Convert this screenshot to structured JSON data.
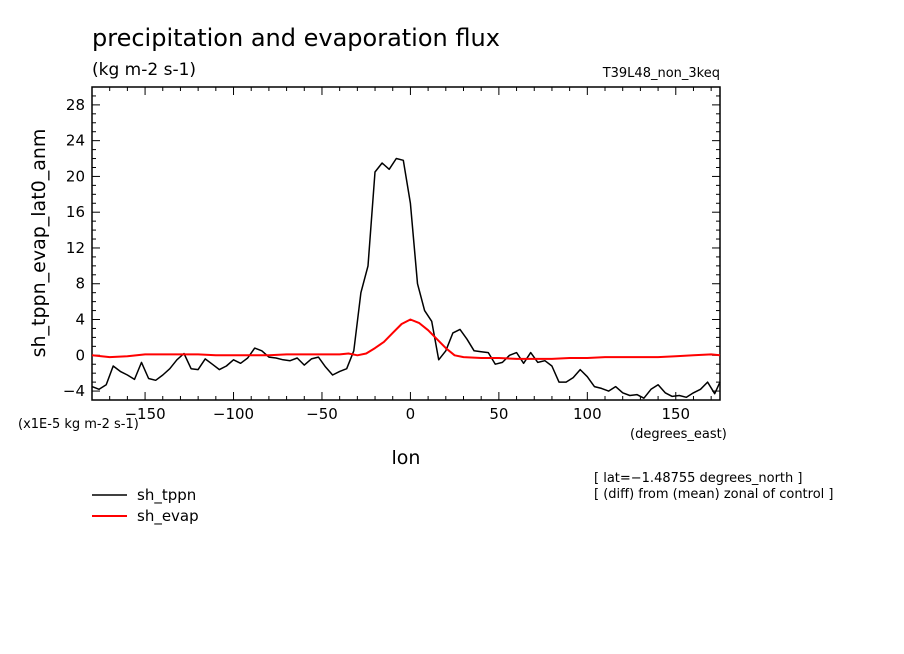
{
  "chart_data": {
    "type": "line",
    "title": "precipitation and evaporation flux",
    "units": "(kg m-2 s-1)",
    "run_label": "T39L48_non_3keq",
    "xlabel": "lon",
    "x_units": "(degrees_east)",
    "ylabel": "sh_tppn_evap_lat0_anm",
    "y_scale_note": "(x1E-5 kg m-2 s-1)",
    "xlim": [
      -180,
      175
    ],
    "ylim": [
      -5,
      30
    ],
    "x_ticks": [
      -150,
      -100,
      -50,
      0,
      50,
      100,
      150
    ],
    "x_tick_labels": [
      "−150",
      "−100",
      "−50",
      "0",
      "50",
      "100",
      "150"
    ],
    "y_ticks": [
      -4,
      0,
      4,
      8,
      12,
      16,
      20,
      24,
      28
    ],
    "y_tick_labels": [
      "−4",
      "0",
      "4",
      "8",
      "12",
      "16",
      "20",
      "24",
      "28"
    ],
    "annotations": [
      "[ lat=−1.48755 degrees_north ]",
      "[ (diff) from (mean) zonal of control ]"
    ],
    "legend_placement": "bottom-left",
    "grid": false,
    "series": [
      {
        "name": "sh_tppn",
        "color": "#000000",
        "x": [
          -180,
          -176,
          -172,
          -168,
          -164,
          -160,
          -156,
          -152,
          -148,
          -144,
          -140,
          -136,
          -132,
          -128,
          -124,
          -120,
          -116,
          -112,
          -108,
          -104,
          -100,
          -96,
          -92,
          -88,
          -84,
          -80,
          -76,
          -72,
          -68,
          -64,
          -60,
          -56,
          -52,
          -48,
          -44,
          -40,
          -36,
          -32,
          -28,
          -24,
          -20,
          -16,
          -12,
          -8,
          -4,
          0,
          4,
          8,
          12,
          16,
          20,
          24,
          28,
          32,
          36,
          40,
          44,
          48,
          52,
          56,
          60,
          64,
          68,
          72,
          76,
          80,
          84,
          88,
          92,
          96,
          100,
          104,
          108,
          112,
          116,
          120,
          124,
          128,
          132,
          136,
          140,
          144,
          148,
          152,
          156,
          160,
          164,
          168,
          172,
          175
        ],
        "values": [
          -3.5,
          -3.8,
          -3.3,
          -1.2,
          -1.8,
          -2.2,
          -2.7,
          -0.8,
          -2.6,
          -2.8,
          -2.2,
          -1.5,
          -0.5,
          0.2,
          -1.5,
          -1.6,
          -0.4,
          -1.0,
          -1.6,
          -1.2,
          -0.5,
          -0.9,
          -0.3,
          0.8,
          0.5,
          -0.2,
          -0.3,
          -0.5,
          -0.6,
          -0.3,
          -1.1,
          -0.4,
          -0.2,
          -1.3,
          -2.2,
          -1.8,
          -1.5,
          0.5,
          7.0,
          10.0,
          20.5,
          21.5,
          20.8,
          22.0,
          21.8,
          17.0,
          8.0,
          5.0,
          3.8,
          -0.5,
          0.5,
          2.5,
          2.9,
          1.8,
          0.5,
          0.4,
          0.3,
          -1.0,
          -0.8,
          0.0,
          0.3,
          -0.9,
          0.3,
          -0.8,
          -0.6,
          -1.2,
          -3.0,
          -3.0,
          -2.5,
          -1.6,
          -2.4,
          -3.5,
          -3.7,
          -4.0,
          -3.5,
          -4.2,
          -4.5,
          -4.4,
          -4.8,
          -3.8,
          -3.3,
          -4.2,
          -4.6,
          -4.5,
          -4.7,
          -4.2,
          -3.8,
          -3.0,
          -4.3,
          -3.0
        ],
        "_note": "values estimated from plot"
      },
      {
        "name": "sh_evap",
        "color": "#ff0000",
        "x": [
          -180,
          -170,
          -160,
          -150,
          -140,
          -130,
          -120,
          -110,
          -100,
          -90,
          -80,
          -70,
          -60,
          -50,
          -40,
          -35,
          -30,
          -25,
          -20,
          -15,
          -10,
          -5,
          0,
          5,
          10,
          15,
          20,
          25,
          30,
          40,
          50,
          60,
          70,
          80,
          90,
          100,
          110,
          120,
          130,
          140,
          150,
          160,
          170,
          175
        ],
        "values": [
          0.0,
          -0.2,
          -0.1,
          0.1,
          0.1,
          0.1,
          0.1,
          0.0,
          0.0,
          0.0,
          0.0,
          0.1,
          0.1,
          0.1,
          0.1,
          0.2,
          0.0,
          0.2,
          0.8,
          1.5,
          2.5,
          3.5,
          4.0,
          3.6,
          2.8,
          1.8,
          0.8,
          0.0,
          -0.2,
          -0.3,
          -0.3,
          -0.4,
          -0.4,
          -0.4,
          -0.3,
          -0.3,
          -0.2,
          -0.2,
          -0.2,
          -0.2,
          -0.1,
          0.0,
          0.1,
          0.0
        ]
      }
    ]
  }
}
